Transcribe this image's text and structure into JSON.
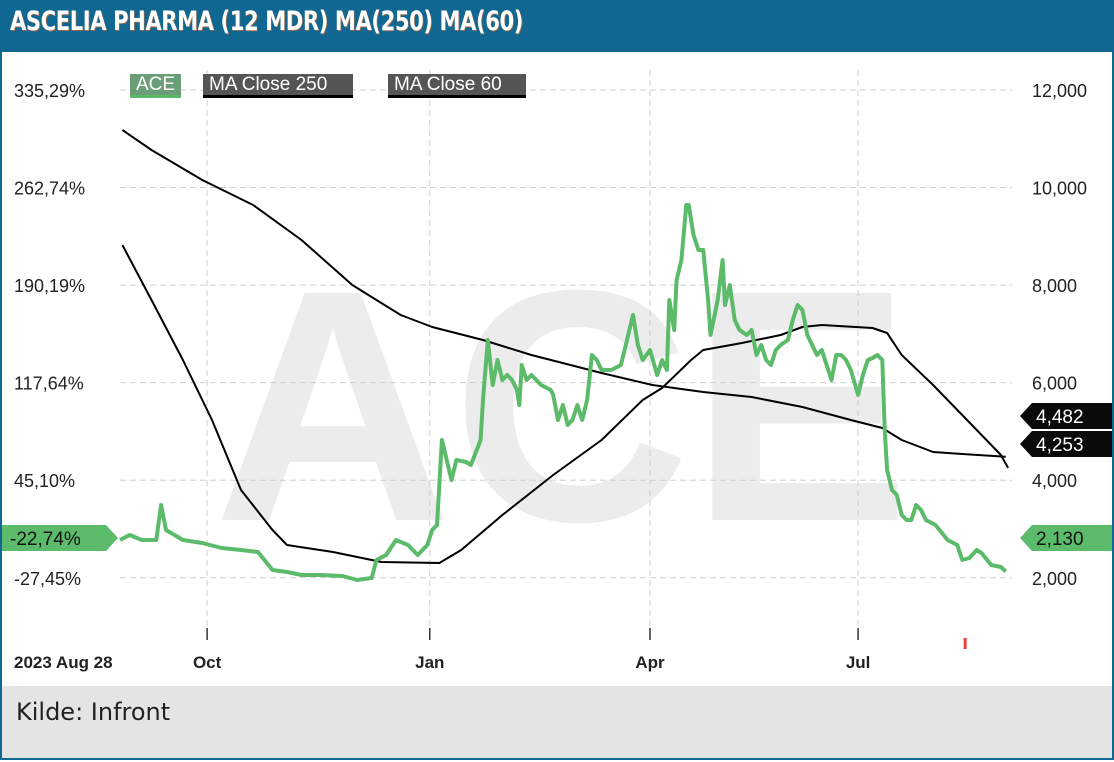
{
  "title": "ASCELIA PHARMA (12 MDR) MA(250) MA(60)",
  "footer": {
    "source": "Kilde: Infront"
  },
  "watermark": "ACE",
  "colors": {
    "frame": "#0f6792",
    "ace": "#5cbb6a",
    "ma": "#000000",
    "grid": "#cccccc"
  },
  "chart_data": {
    "type": "line",
    "title": "ASCELIA PHARMA (12 MDR) MA(250) MA(60)",
    "x_unit": "days since 2023-08-28",
    "x_start_label": "2023 Aug 28",
    "x_ticks": [
      {
        "label": "Oct",
        "day": 36
      },
      {
        "label": "Jan",
        "day": 128
      },
      {
        "label": "Apr",
        "day": 219
      },
      {
        "label": "Jul",
        "day": 305
      }
    ],
    "xlim": [
      0,
      368
    ],
    "ylim": [
      1000,
      12600
    ],
    "right_ticks": [
      {
        "label": "12,000",
        "v": 12000
      },
      {
        "label": "10,000",
        "v": 10000
      },
      {
        "label": "8,000",
        "v": 8000
      },
      {
        "label": "6,000",
        "v": 6000
      },
      {
        "label": "4,000",
        "v": 4000
      },
      {
        "label": "2,000",
        "v": 2000
      }
    ],
    "left_ticks": [
      {
        "label": "335,29%",
        "v": 12000
      },
      {
        "label": "262,74%",
        "v": 10000
      },
      {
        "label": "190,19%",
        "v": 8000
      },
      {
        "label": "117,64%",
        "v": 6000
      },
      {
        "label": "45,10%",
        "v": 4000
      },
      {
        "label": "-27,45%",
        "v": 2000
      }
    ],
    "legend": [
      "ACE",
      "MA Close 250",
      "MA Close 60"
    ],
    "last_labels": {
      "ace": "2,130",
      "ace_pct": "-22,74%",
      "ma250": "4,482",
      "ma60": "4,253"
    },
    "marker_day": 348,
    "series": [
      {
        "name": "ACE",
        "points": [
          [
            0,
            2775
          ],
          [
            4,
            2877
          ],
          [
            9,
            2775
          ],
          [
            15,
            2775
          ],
          [
            17,
            3492
          ],
          [
            19,
            2980
          ],
          [
            26,
            2775
          ],
          [
            34,
            2713
          ],
          [
            42,
            2611
          ],
          [
            50,
            2570
          ],
          [
            57,
            2529
          ],
          [
            63,
            2160
          ],
          [
            69,
            2119
          ],
          [
            75,
            2057
          ],
          [
            83,
            2057
          ],
          [
            92,
            2037
          ],
          [
            98,
            1955
          ],
          [
            104,
            1996
          ],
          [
            106,
            2365
          ],
          [
            110,
            2467
          ],
          [
            114,
            2775
          ],
          [
            119,
            2672
          ],
          [
            123,
            2467
          ],
          [
            127,
            2672
          ],
          [
            129,
            2980
          ],
          [
            131,
            3082
          ],
          [
            133,
            4825
          ],
          [
            135,
            4415
          ],
          [
            137,
            4005
          ],
          [
            139,
            4415
          ],
          [
            143,
            4374
          ],
          [
            145,
            4312
          ],
          [
            149,
            4825
          ],
          [
            150,
            5645
          ],
          [
            152,
            6875
          ],
          [
            154,
            5952
          ],
          [
            156,
            6465
          ],
          [
            158,
            6055
          ],
          [
            160,
            6157
          ],
          [
            162,
            6055
          ],
          [
            164,
            5850
          ],
          [
            165,
            5542
          ],
          [
            166,
            6362
          ],
          [
            168,
            6055
          ],
          [
            170,
            6157
          ],
          [
            174,
            5952
          ],
          [
            178,
            5850
          ],
          [
            179,
            5747
          ],
          [
            181,
            5235
          ],
          [
            183,
            5542
          ],
          [
            185,
            5132
          ],
          [
            187,
            5235
          ],
          [
            189,
            5542
          ],
          [
            191,
            5235
          ],
          [
            193,
            5645
          ],
          [
            195,
            6567
          ],
          [
            197,
            6465
          ],
          [
            199,
            6260
          ],
          [
            203,
            6260
          ],
          [
            207,
            6362
          ],
          [
            209,
            6772
          ],
          [
            212,
            7387
          ],
          [
            214,
            6772
          ],
          [
            216,
            6465
          ],
          [
            219,
            6670
          ],
          [
            222,
            6157
          ],
          [
            224,
            6465
          ],
          [
            226,
            6260
          ],
          [
            227,
            7695
          ],
          [
            229,
            7080
          ],
          [
            230,
            8105
          ],
          [
            232,
            8515
          ],
          [
            234,
            9642
          ],
          [
            235,
            9642
          ],
          [
            237,
            9027
          ],
          [
            239,
            8720
          ],
          [
            241,
            8720
          ],
          [
            243,
            7695
          ],
          [
            244,
            6977
          ],
          [
            247,
            7695
          ],
          [
            249,
            8515
          ],
          [
            250,
            7592
          ],
          [
            252,
            8002
          ],
          [
            254,
            7285
          ],
          [
            256,
            7080
          ],
          [
            259,
            6977
          ],
          [
            261,
            7080
          ],
          [
            263,
            6567
          ],
          [
            265,
            6772
          ],
          [
            267,
            6465
          ],
          [
            269,
            6362
          ],
          [
            271,
            6670
          ],
          [
            273,
            6772
          ],
          [
            276,
            6875
          ],
          [
            278,
            7285
          ],
          [
            280,
            7592
          ],
          [
            282,
            7490
          ],
          [
            284,
            6977
          ],
          [
            286,
            6772
          ],
          [
            288,
            6567
          ],
          [
            290,
            6670
          ],
          [
            292,
            6362
          ],
          [
            294,
            6055
          ],
          [
            296,
            6567
          ],
          [
            298,
            6567
          ],
          [
            300,
            6465
          ],
          [
            302,
            6260
          ],
          [
            305,
            5747
          ],
          [
            307,
            6157
          ],
          [
            309,
            6465
          ],
          [
            311,
            6506
          ],
          [
            313,
            6567
          ],
          [
            315,
            6465
          ],
          [
            316,
            5030
          ],
          [
            317,
            4210
          ],
          [
            319,
            3800
          ],
          [
            321,
            3697
          ],
          [
            323,
            3287
          ],
          [
            325,
            3185
          ],
          [
            327,
            3185
          ],
          [
            329,
            3492
          ],
          [
            331,
            3390
          ],
          [
            333,
            3185
          ],
          [
            337,
            3082
          ],
          [
            342,
            2775
          ],
          [
            346,
            2672
          ],
          [
            348,
            2365
          ],
          [
            351,
            2406
          ],
          [
            354,
            2570
          ],
          [
            356,
            2508
          ],
          [
            360,
            2262
          ],
          [
            364,
            2221
          ],
          [
            366,
            2130
          ]
        ]
      },
      {
        "name": "MA Close 250",
        "points": [
          [
            1,
            11180
          ],
          [
            13,
            10770
          ],
          [
            34,
            10155
          ],
          [
            55,
            9642
          ],
          [
            75,
            8925
          ],
          [
            96,
            8002
          ],
          [
            116,
            7387
          ],
          [
            129,
            7141
          ],
          [
            150,
            6875
          ],
          [
            170,
            6567
          ],
          [
            199,
            6198
          ],
          [
            220,
            5952
          ],
          [
            241,
            5809
          ],
          [
            261,
            5706
          ],
          [
            282,
            5501
          ],
          [
            302,
            5235
          ],
          [
            315,
            5071
          ],
          [
            323,
            4825
          ],
          [
            336,
            4579
          ],
          [
            348,
            4538
          ],
          [
            366,
            4482
          ]
        ]
      },
      {
        "name": "MA Close 60",
        "points": [
          [
            1,
            8822
          ],
          [
            13,
            7695
          ],
          [
            26,
            6465
          ],
          [
            38,
            5235
          ],
          [
            50,
            3800
          ],
          [
            63,
            2980
          ],
          [
            69,
            2672
          ],
          [
            88,
            2529
          ],
          [
            108,
            2324
          ],
          [
            132,
            2303
          ],
          [
            141,
            2570
          ],
          [
            158,
            3287
          ],
          [
            179,
            4107
          ],
          [
            199,
            4825
          ],
          [
            216,
            5645
          ],
          [
            224,
            5891
          ],
          [
            236,
            6465
          ],
          [
            241,
            6670
          ],
          [
            257,
            6814
          ],
          [
            273,
            6977
          ],
          [
            282,
            7141
          ],
          [
            290,
            7182
          ],
          [
            311,
            7121
          ],
          [
            317,
            7018
          ],
          [
            323,
            6567
          ],
          [
            336,
            5952
          ],
          [
            348,
            5337
          ],
          [
            358,
            4825
          ],
          [
            364,
            4517
          ],
          [
            367,
            4253
          ]
        ]
      }
    ]
  }
}
